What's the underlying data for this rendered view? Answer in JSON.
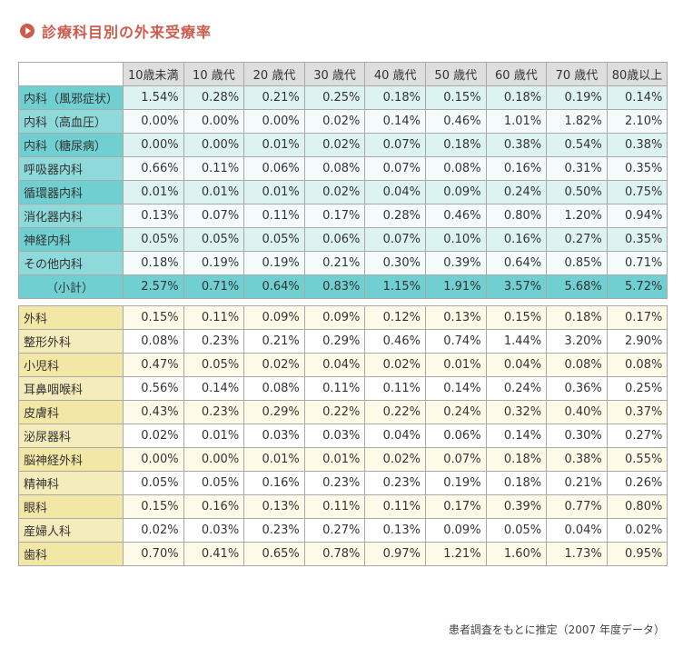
{
  "title": "診療科目別の外来受療率",
  "title_icon": "play-circle-icon",
  "colors": {
    "title": "#cf5b4d",
    "internal_label": "#6fcfd1",
    "internal_cell": "#ddf3f1",
    "other_label": "#f2e7a4",
    "other_cell": "#fdfbe8",
    "header": "#dedede"
  },
  "table": {
    "headers": [
      "10歳未満",
      "10 歳代",
      "20 歳代",
      "30 歳代",
      "40 歳代",
      "50 歳代",
      "60 歳代",
      "70 歳代",
      "80歳以上"
    ],
    "internal_rows": [
      {
        "label": "内科（風邪症状）",
        "values": [
          "1.54%",
          "0.28%",
          "0.21%",
          "0.25%",
          "0.18%",
          "0.15%",
          "0.18%",
          "0.19%",
          "0.14%"
        ]
      },
      {
        "label": "内科（高血圧）",
        "values": [
          "0.00%",
          "0.00%",
          "0.00%",
          "0.02%",
          "0.14%",
          "0.46%",
          "1.01%",
          "1.82%",
          "2.10%"
        ]
      },
      {
        "label": "内科（糖尿病）",
        "values": [
          "0.00%",
          "0.00%",
          "0.01%",
          "0.02%",
          "0.07%",
          "0.18%",
          "0.38%",
          "0.54%",
          "0.38%"
        ]
      },
      {
        "label": "呼吸器内科",
        "values": [
          "0.66%",
          "0.11%",
          "0.06%",
          "0.08%",
          "0.07%",
          "0.08%",
          "0.16%",
          "0.31%",
          "0.35%"
        ]
      },
      {
        "label": "循環器内科",
        "values": [
          "0.01%",
          "0.01%",
          "0.01%",
          "0.02%",
          "0.04%",
          "0.09%",
          "0.24%",
          "0.50%",
          "0.75%"
        ]
      },
      {
        "label": "消化器内科",
        "values": [
          "0.13%",
          "0.07%",
          "0.11%",
          "0.17%",
          "0.28%",
          "0.46%",
          "0.80%",
          "1.20%",
          "0.94%"
        ]
      },
      {
        "label": "神経内科",
        "values": [
          "0.05%",
          "0.05%",
          "0.05%",
          "0.06%",
          "0.07%",
          "0.10%",
          "0.16%",
          "0.27%",
          "0.35%"
        ]
      },
      {
        "label": "その他内科",
        "values": [
          "0.18%",
          "0.19%",
          "0.19%",
          "0.21%",
          "0.30%",
          "0.39%",
          "0.64%",
          "0.85%",
          "0.71%"
        ]
      }
    ],
    "subtotal": {
      "label": "（小計）",
      "values": [
        "2.57%",
        "0.71%",
        "0.64%",
        "0.83%",
        "1.15%",
        "1.91%",
        "3.57%",
        "5.68%",
        "5.72%"
      ]
    },
    "other_rows": [
      {
        "label": "外科",
        "values": [
          "0.15%",
          "0.11%",
          "0.09%",
          "0.09%",
          "0.12%",
          "0.13%",
          "0.15%",
          "0.18%",
          "0.17%"
        ]
      },
      {
        "label": "整形外科",
        "values": [
          "0.08%",
          "0.23%",
          "0.21%",
          "0.29%",
          "0.46%",
          "0.74%",
          "1.44%",
          "3.20%",
          "2.90%"
        ]
      },
      {
        "label": "小児科",
        "values": [
          "0.47%",
          "0.05%",
          "0.02%",
          "0.04%",
          "0.02%",
          "0.01%",
          "0.04%",
          "0.08%",
          "0.08%"
        ]
      },
      {
        "label": "耳鼻咽喉科",
        "values": [
          "0.56%",
          "0.14%",
          "0.08%",
          "0.11%",
          "0.11%",
          "0.14%",
          "0.24%",
          "0.36%",
          "0.25%"
        ]
      },
      {
        "label": "皮膚科",
        "values": [
          "0.43%",
          "0.23%",
          "0.29%",
          "0.22%",
          "0.22%",
          "0.24%",
          "0.32%",
          "0.40%",
          "0.37%"
        ]
      },
      {
        "label": "泌尿器科",
        "values": [
          "0.02%",
          "0.01%",
          "0.03%",
          "0.03%",
          "0.04%",
          "0.06%",
          "0.14%",
          "0.30%",
          "0.27%"
        ]
      },
      {
        "label": "脳神経外科",
        "values": [
          "0.00%",
          "0.00%",
          "0.01%",
          "0.01%",
          "0.02%",
          "0.07%",
          "0.18%",
          "0.38%",
          "0.55%"
        ]
      },
      {
        "label": "精神科",
        "values": [
          "0.05%",
          "0.05%",
          "0.16%",
          "0.23%",
          "0.23%",
          "0.19%",
          "0.18%",
          "0.21%",
          "0.26%"
        ]
      },
      {
        "label": "眼科",
        "values": [
          "0.15%",
          "0.16%",
          "0.13%",
          "0.11%",
          "0.11%",
          "0.17%",
          "0.39%",
          "0.77%",
          "0.80%"
        ]
      },
      {
        "label": "産婦人科",
        "values": [
          "0.02%",
          "0.03%",
          "0.23%",
          "0.27%",
          "0.13%",
          "0.09%",
          "0.05%",
          "0.04%",
          "0.02%"
        ]
      },
      {
        "label": "歯科",
        "values": [
          "0.70%",
          "0.41%",
          "0.65%",
          "0.78%",
          "0.97%",
          "1.21%",
          "1.60%",
          "1.73%",
          "0.95%"
        ]
      }
    ]
  },
  "source": "患者調査をもとに推定（2007 年度データ）"
}
